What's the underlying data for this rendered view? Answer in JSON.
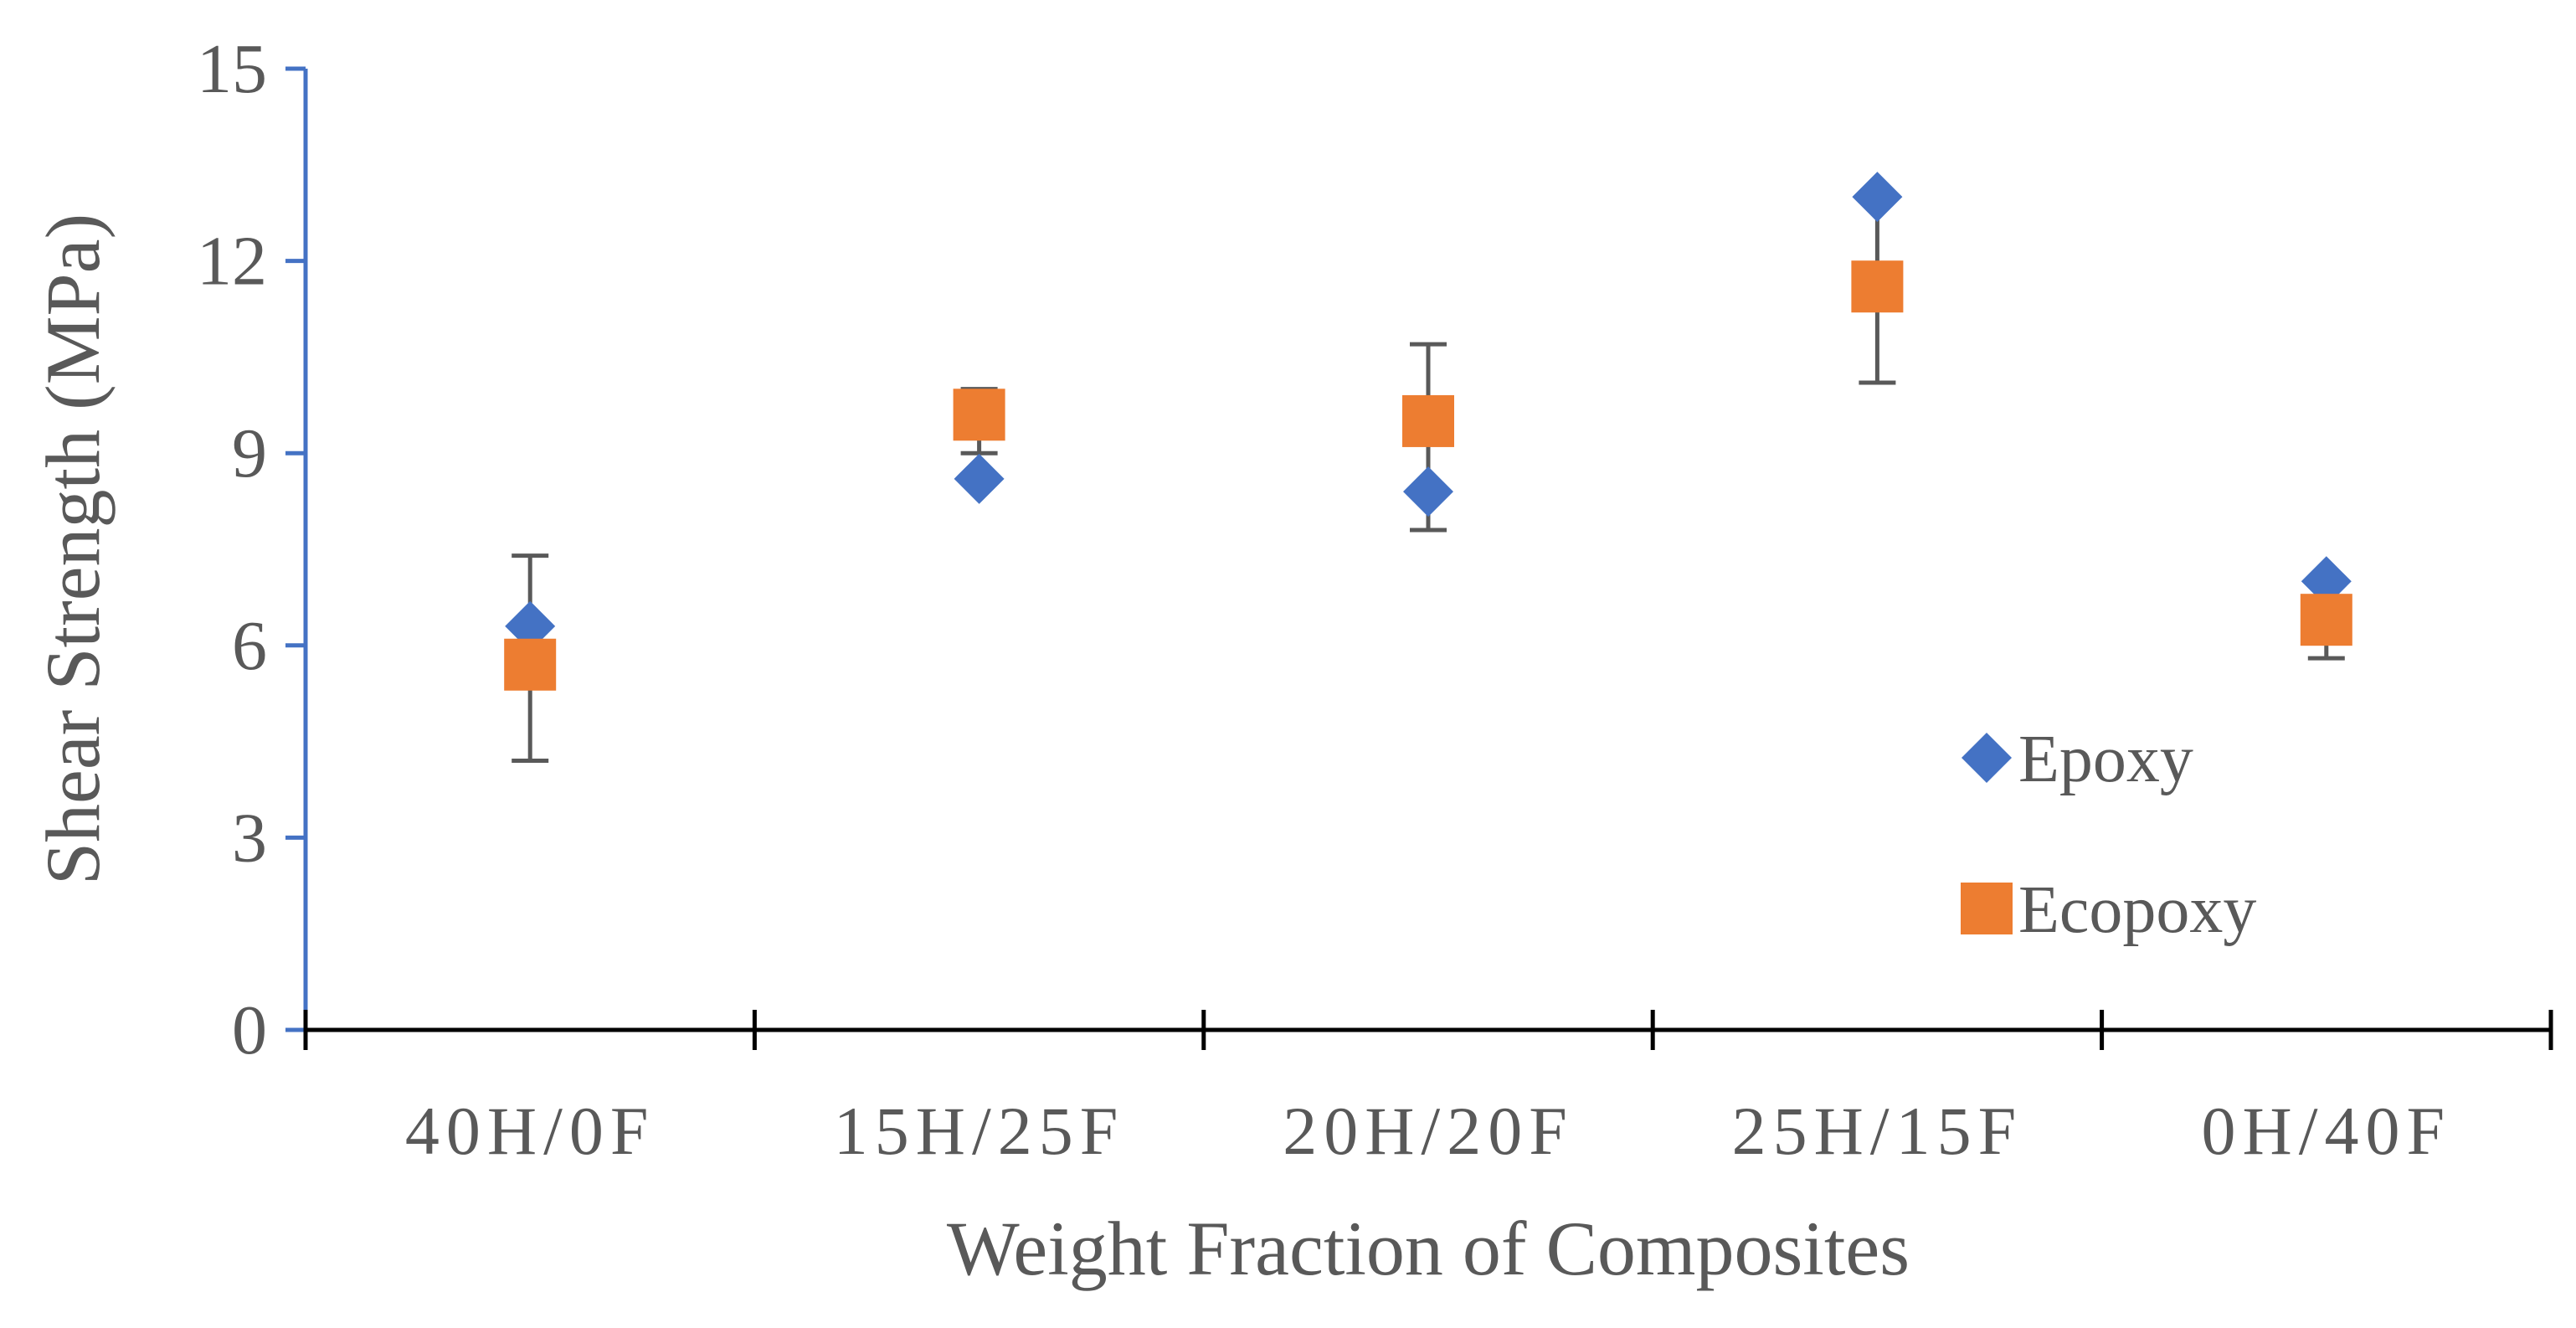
{
  "chart_data": {
    "type": "scatter",
    "title": "",
    "xlabel": "Weight Fraction of Composites",
    "ylabel": "Shear Strength (MPa)",
    "ylim": [
      0,
      15
    ],
    "yticks": [
      "0",
      "3",
      "6",
      "9",
      "12",
      "15"
    ],
    "categories": [
      "40H/0F",
      "15H/25F",
      "20H/20F",
      "25H/15F",
      "0H/40F"
    ],
    "grid": false,
    "legend_position": "right",
    "series": [
      {
        "name": "Epoxy",
        "marker": "diamond",
        "color": "#4472C4",
        "values": [
          6.3,
          8.6,
          8.4,
          13.0,
          7.0
        ],
        "error_low": [
          6.3,
          8.6,
          7.8,
          13.0,
          7.0
        ],
        "error_high": [
          6.3,
          8.6,
          8.4,
          13.0,
          7.0
        ]
      },
      {
        "name": "Ecopoxy",
        "marker": "square",
        "color": "#ED7D31",
        "values": [
          5.7,
          9.6,
          9.5,
          11.6,
          6.4
        ],
        "error_low": [
          4.2,
          9.0,
          7.8,
          10.1,
          5.8
        ],
        "error_high": [
          7.4,
          10.0,
          10.7,
          13.0,
          7.0
        ]
      }
    ],
    "colors": {
      "y_axis": "#4472C4",
      "x_axis": "#000000",
      "error_bar": "#595959",
      "text": "#595959"
    }
  }
}
